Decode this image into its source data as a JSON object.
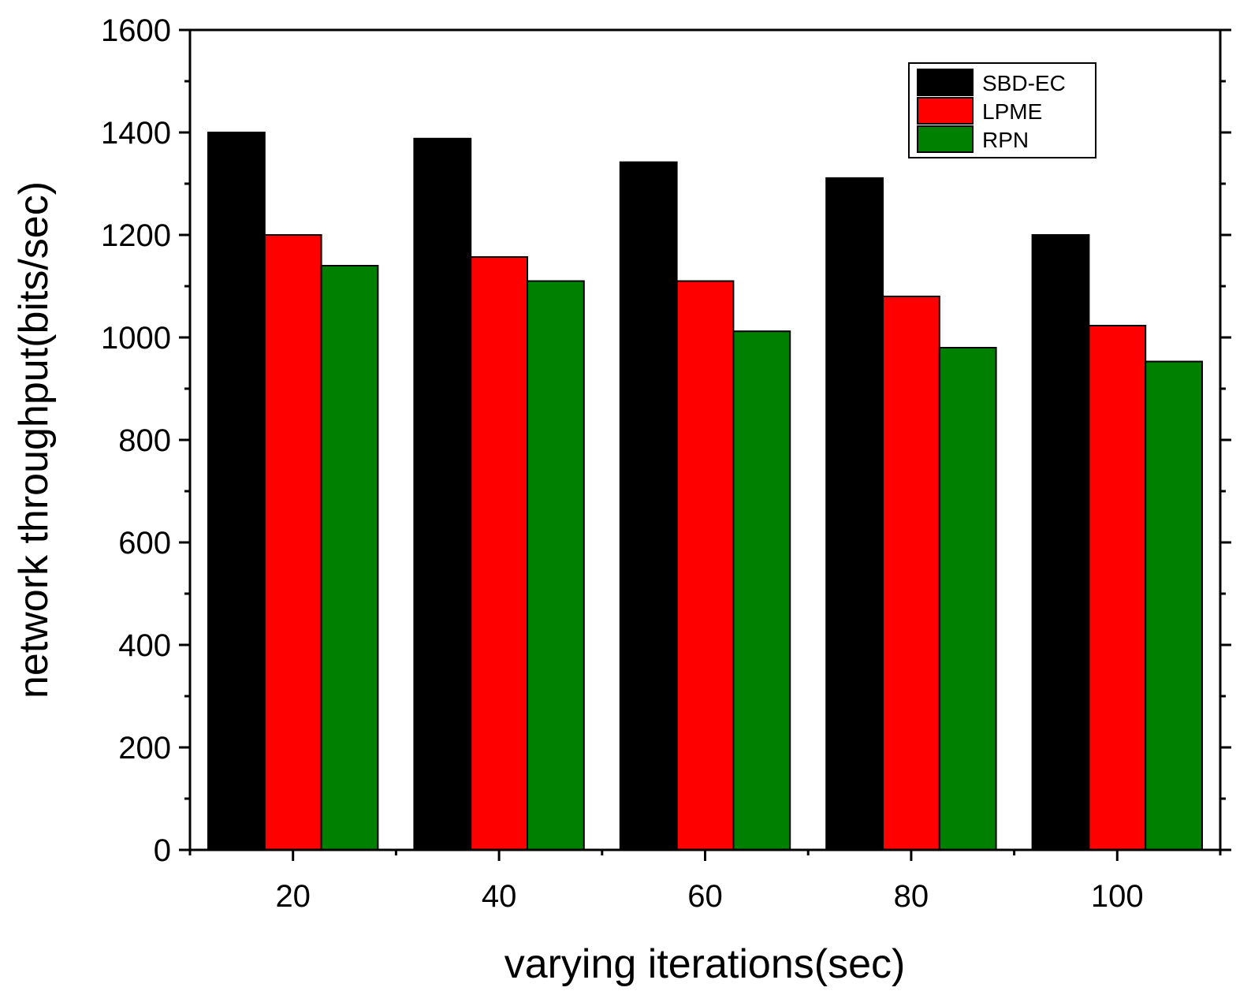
{
  "chart_data": {
    "type": "bar",
    "title": "",
    "xlabel": "varying iterations(sec)",
    "ylabel": "network throughput(bits/sec)",
    "categories": [
      "20",
      "40",
      "60",
      "80",
      "100"
    ],
    "ylim": [
      0,
      1600
    ],
    "yticks": [
      "0",
      "200",
      "400",
      "600",
      "800",
      "1000",
      "1200",
      "1400",
      "1600"
    ],
    "legend_position": "top-right",
    "series": [
      {
        "name": "SBD-EC",
        "color": "#000000",
        "values": [
          1400,
          1388,
          1342,
          1311,
          1200
        ]
      },
      {
        "name": "LPME",
        "color": "#ff0000",
        "values": [
          1200,
          1157,
          1110,
          1080,
          1023
        ]
      },
      {
        "name": "RPN",
        "color": "#008000",
        "values": [
          1140,
          1110,
          1012,
          980,
          953
        ]
      }
    ]
  }
}
